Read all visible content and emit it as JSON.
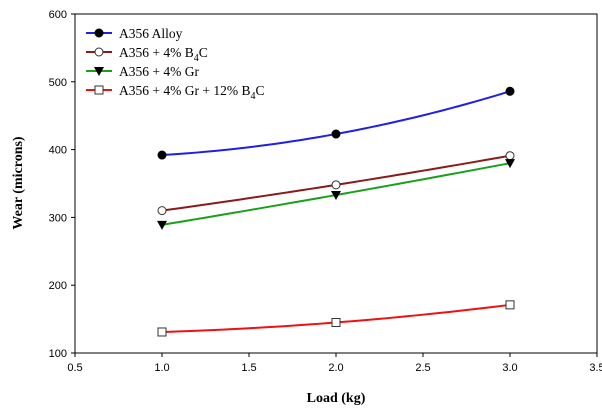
{
  "chart_data": {
    "type": "line",
    "title": "",
    "xlabel": "Load (kg)",
    "ylabel": "Wear (microns)",
    "xlim": [
      0.5,
      3.5
    ],
    "ylim": [
      100,
      600
    ],
    "xticks": [
      "0.5",
      "1.0",
      "1.5",
      "2.0",
      "2.5",
      "3.0",
      "3.5"
    ],
    "yticks": [
      "100",
      "200",
      "300",
      "400",
      "500",
      "600"
    ],
    "grid": false,
    "legend_position": "top-left",
    "x": [
      1.0,
      2.0,
      3.0
    ],
    "series": [
      {
        "name": "A356 Alloy",
        "legend": {
          "pre": "A356 Alloy",
          "sub": "",
          "post": ""
        },
        "values": [
          392,
          423,
          486
        ],
        "color": "#1f1fe6",
        "marker": "filled-circle",
        "marker_color": "#000000"
      },
      {
        "name": "A356 + 4% B4C",
        "legend": {
          "pre": "A356 + 4% B",
          "sub": "4",
          "post": "C"
        },
        "values": [
          310,
          348,
          391
        ],
        "color": "#8b1a1a",
        "marker": "open-circle",
        "marker_color": "#333333"
      },
      {
        "name": "A356 + 4% Gr",
        "legend": {
          "pre": "A356 + 4% Gr",
          "sub": "",
          "post": ""
        },
        "values": [
          289,
          333,
          380
        ],
        "color": "#17a117",
        "marker": "filled-triangle-down",
        "marker_color": "#000000"
      },
      {
        "name": "A356 + 4% Gr + 12% B4C",
        "legend": {
          "pre": "A356 + 4% Gr + 12% B",
          "sub": "4",
          "post": "C"
        },
        "values": [
          131,
          145,
          171
        ],
        "color": "#ee1111",
        "marker": "open-square",
        "marker_color": "#333333"
      }
    ]
  }
}
